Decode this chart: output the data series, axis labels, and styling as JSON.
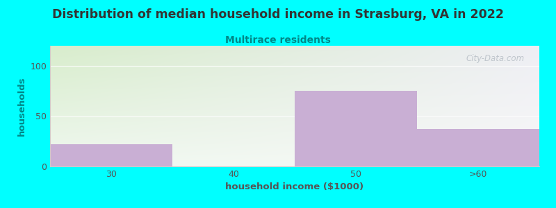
{
  "title": "Distribution of median household income in Strasburg, VA in 2022",
  "subtitle": "Multirace residents",
  "xlabel": "household income ($1000)",
  "ylabel": "households",
  "categories": [
    "30",
    "40",
    "50",
    ">60"
  ],
  "values": [
    22,
    0,
    75,
    37
  ],
  "bar_color": "#c9afd4",
  "background_color": "#00ffff",
  "plot_bg_topleft": "#d8edcc",
  "plot_bg_topright": "#f0eeee",
  "plot_bg_bottomleft": "#e8f4de",
  "plot_bg_bottomright": "#f8f8f8",
  "title_color": "#333333",
  "subtitle_color": "#008888",
  "ylabel_color": "#008888",
  "xlabel_color": "#555555",
  "tick_color": "#555555",
  "yticks": [
    0,
    50,
    100
  ],
  "ylim": [
    0,
    120
  ],
  "watermark": "City-Data.com",
  "title_fontsize": 12.5,
  "subtitle_fontsize": 10,
  "label_fontsize": 9.5,
  "tick_fontsize": 9
}
